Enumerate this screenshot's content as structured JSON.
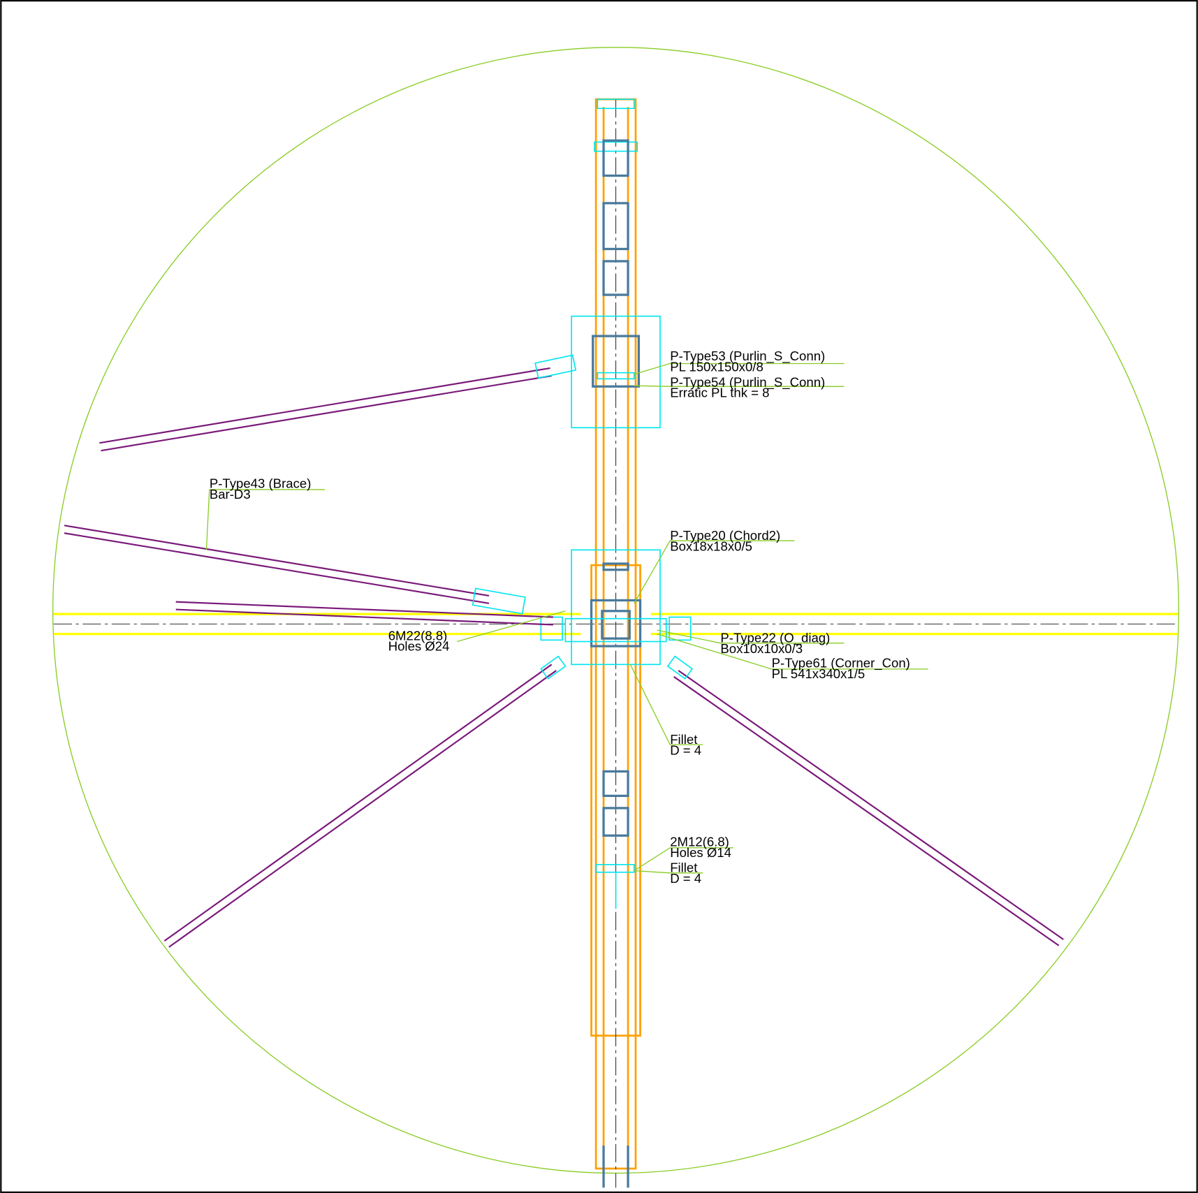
{
  "annotations": [
    {
      "lines": [
        "P-Type53 (Purlin_S_Conn)",
        "PL 150x150x0/8"
      ]
    },
    {
      "lines": [
        "P-Type54 (Purlin_S_Conn)",
        "Erratic PL thk = 8"
      ]
    },
    {
      "lines": [
        "P-Type43 (Brace)",
        "Bar-D3"
      ]
    },
    {
      "lines": [
        "P-Type20 (Chord2)",
        "Box18x18x0/5"
      ]
    },
    {
      "lines": [
        "6M22(8.8)",
        "Holes Ø24"
      ]
    },
    {
      "lines": [
        "P-Type22 (O_diag)",
        "Box10x10x0/3"
      ]
    },
    {
      "lines": [
        "P-Type61 (Corner_Con)",
        "PL 541x340x1/5"
      ]
    },
    {
      "lines": [
        "Fillet",
        "D = 4"
      ]
    },
    {
      "lines": [
        "2M12(6.8)",
        "Holes Ø14"
      ]
    },
    {
      "lines": [
        "Fillet",
        "D = 4"
      ]
    }
  ]
}
